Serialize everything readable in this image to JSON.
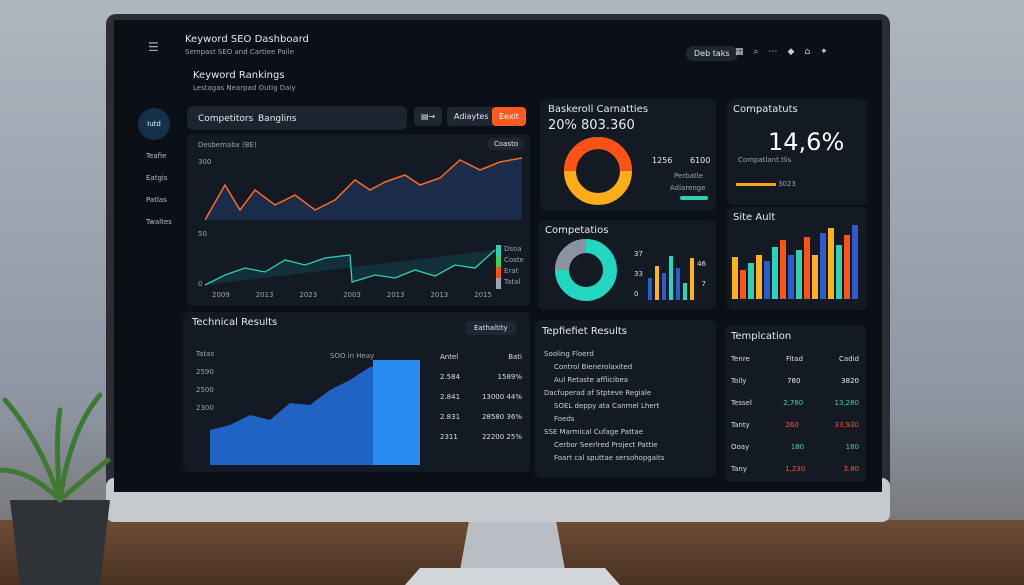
{
  "header": {
    "title": "Keyword SEO Dashboard",
    "subtitle": "Sempast SEO and Cartiee Paile",
    "search": "Deb taks"
  },
  "sidebar": {
    "profile": "Iutd",
    "items": [
      "Teafie",
      "Eatgis",
      "Patlas",
      "Twaltes"
    ]
  },
  "rankings": {
    "title": "Keyword Rankings",
    "subtitle": "Lestagas Nearpad Outig Daiy",
    "tabs": [
      "Competitors",
      "Banglins"
    ],
    "buttons": [
      "Adiaytes",
      "Eexit"
    ],
    "chart_label": "Desbemabx (BE)",
    "chart_tag": "Coasto",
    "yticks": [
      "300",
      "50",
      "0"
    ],
    "xticks": [
      "2009",
      "2013",
      "2023",
      "2003",
      "2013",
      "2013",
      "2015"
    ],
    "legend": [
      "Dsoa",
      "Coste",
      "Erat",
      "Tatal"
    ]
  },
  "basket": {
    "title": "Baskeroll Carnatties",
    "value": "20% 803.360",
    "stats": [
      "1256",
      "6100"
    ],
    "labels": [
      "Perbatle",
      "Adiarenge"
    ]
  },
  "competitors": {
    "title": "Compatatuts",
    "value": "14,6%",
    "label": "Compatlant.tlis",
    "foot": "3023"
  },
  "competatios": {
    "title": "Competatios",
    "numbers": [
      "37",
      "46",
      "33",
      "7",
      "0"
    ]
  },
  "site_audit": {
    "title": "Site Ault"
  },
  "technical": {
    "title": "Technical Results",
    "button": "Eathaltity",
    "chart_note": "SOO in Heay",
    "yticks": [
      "Tatas",
      "2590",
      "2500",
      "2300"
    ],
    "columns": [
      "Antel",
      "Bati"
    ],
    "rows": [
      [
        "2.584",
        "1589%"
      ],
      [
        "2.841",
        "13000 44%"
      ],
      [
        "2.831",
        "28580 36%"
      ],
      [
        "2311",
        "22200 25%"
      ]
    ]
  },
  "results": {
    "title": "Tepfiefiet Results",
    "items": [
      "Sooling Floerd",
      "Control Bienerolaxited",
      "Aul Retaste afflicibea",
      "Dacfuperad af Stpteve Regiale",
      "SOEL deppy ata Canmel Lhert",
      "Foeds",
      "SSE Marmical Cufage Pattae",
      "Cerbor Seerlred Project Pattie",
      "Foart cal sputtae sersohopgaits"
    ]
  },
  "template": {
    "title": "Templcation",
    "columns": [
      "Tenre",
      "Fitad",
      "Cadid"
    ],
    "rows": [
      [
        "Tolly",
        "780",
        "3820"
      ],
      [
        "Tessel",
        "2,780",
        "13,280"
      ],
      [
        "Tanty",
        "260",
        "33,930"
      ],
      [
        "Ooay",
        "180",
        "180"
      ],
      [
        "Tany",
        "1,230",
        "3.80"
      ]
    ]
  }
}
